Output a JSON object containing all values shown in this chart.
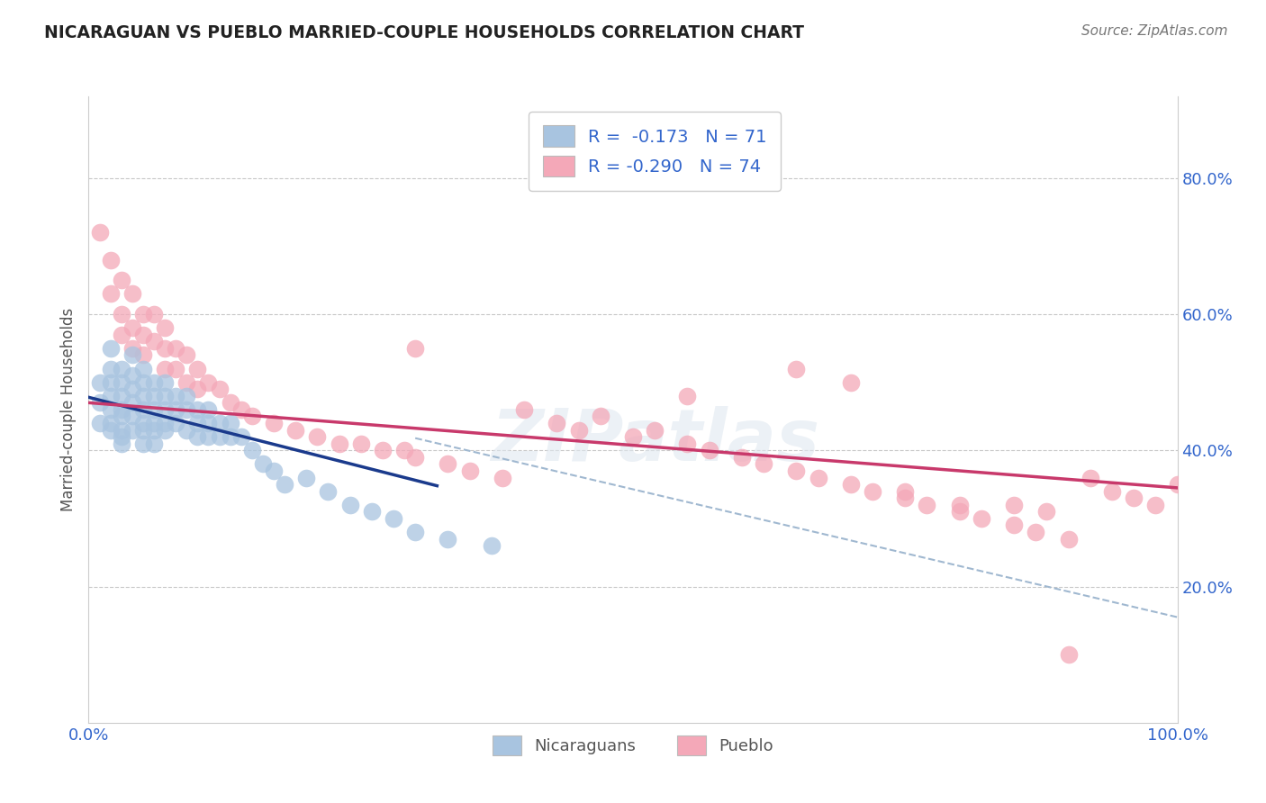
{
  "title": "NICARAGUAN VS PUEBLO MARRIED-COUPLE HOUSEHOLDS CORRELATION CHART",
  "source_text": "Source: ZipAtlas.com",
  "ylabel": "Married-couple Households",
  "xlim": [
    0.0,
    1.0
  ],
  "ylim": [
    0.0,
    0.92
  ],
  "ytick_labels": [
    "20.0%",
    "40.0%",
    "60.0%",
    "80.0%"
  ],
  "ytick_positions": [
    0.2,
    0.4,
    0.6,
    0.8
  ],
  "legend_r_blue": "-0.173",
  "legend_n_blue": "71",
  "legend_r_pink": "-0.290",
  "legend_n_pink": "74",
  "legend_label_blue": "Nicaraguans",
  "legend_label_pink": "Pueblo",
  "blue_color": "#a8c4e0",
  "pink_color": "#f4a8b8",
  "blue_line_color": "#1a3a8c",
  "pink_line_color": "#c8396b",
  "dashed_line_color": "#a0b8d0",
  "watermark": "ZIPatlas",
  "blue_scatter_x": [
    0.01,
    0.01,
    0.01,
    0.02,
    0.02,
    0.02,
    0.02,
    0.02,
    0.02,
    0.02,
    0.03,
    0.03,
    0.03,
    0.03,
    0.03,
    0.03,
    0.03,
    0.03,
    0.04,
    0.04,
    0.04,
    0.04,
    0.04,
    0.04,
    0.05,
    0.05,
    0.05,
    0.05,
    0.05,
    0.05,
    0.05,
    0.06,
    0.06,
    0.06,
    0.06,
    0.06,
    0.06,
    0.07,
    0.07,
    0.07,
    0.07,
    0.07,
    0.08,
    0.08,
    0.08,
    0.09,
    0.09,
    0.09,
    0.1,
    0.1,
    0.1,
    0.11,
    0.11,
    0.11,
    0.12,
    0.12,
    0.13,
    0.13,
    0.14,
    0.15,
    0.16,
    0.17,
    0.18,
    0.2,
    0.22,
    0.24,
    0.26,
    0.28,
    0.3,
    0.33,
    0.37
  ],
  "blue_scatter_y": [
    0.5,
    0.47,
    0.44,
    0.55,
    0.52,
    0.5,
    0.48,
    0.46,
    0.44,
    0.43,
    0.52,
    0.5,
    0.48,
    0.46,
    0.45,
    0.43,
    0.42,
    0.41,
    0.54,
    0.51,
    0.49,
    0.47,
    0.45,
    0.43,
    0.52,
    0.5,
    0.48,
    0.46,
    0.44,
    0.43,
    0.41,
    0.5,
    0.48,
    0.46,
    0.44,
    0.43,
    0.41,
    0.5,
    0.48,
    0.46,
    0.44,
    0.43,
    0.48,
    0.46,
    0.44,
    0.48,
    0.46,
    0.43,
    0.46,
    0.44,
    0.42,
    0.46,
    0.44,
    0.42,
    0.44,
    0.42,
    0.44,
    0.42,
    0.42,
    0.4,
    0.38,
    0.37,
    0.35,
    0.36,
    0.34,
    0.32,
    0.31,
    0.3,
    0.28,
    0.27,
    0.26
  ],
  "pink_scatter_x": [
    0.01,
    0.02,
    0.02,
    0.03,
    0.03,
    0.03,
    0.04,
    0.04,
    0.04,
    0.05,
    0.05,
    0.05,
    0.06,
    0.06,
    0.07,
    0.07,
    0.07,
    0.08,
    0.08,
    0.09,
    0.09,
    0.1,
    0.1,
    0.11,
    0.12,
    0.13,
    0.14,
    0.15,
    0.17,
    0.19,
    0.21,
    0.23,
    0.25,
    0.27,
    0.29,
    0.3,
    0.33,
    0.35,
    0.38,
    0.4,
    0.43,
    0.45,
    0.47,
    0.5,
    0.52,
    0.55,
    0.57,
    0.6,
    0.62,
    0.65,
    0.67,
    0.7,
    0.72,
    0.75,
    0.77,
    0.8,
    0.82,
    0.85,
    0.87,
    0.9,
    0.3,
    0.55,
    0.65,
    0.7,
    0.75,
    0.8,
    0.85,
    0.88,
    0.9,
    0.92,
    0.94,
    0.96,
    0.98,
    1.0
  ],
  "pink_scatter_y": [
    0.72,
    0.68,
    0.63,
    0.65,
    0.6,
    0.57,
    0.63,
    0.58,
    0.55,
    0.6,
    0.57,
    0.54,
    0.6,
    0.56,
    0.58,
    0.55,
    0.52,
    0.55,
    0.52,
    0.54,
    0.5,
    0.52,
    0.49,
    0.5,
    0.49,
    0.47,
    0.46,
    0.45,
    0.44,
    0.43,
    0.42,
    0.41,
    0.41,
    0.4,
    0.4,
    0.39,
    0.38,
    0.37,
    0.36,
    0.46,
    0.44,
    0.43,
    0.45,
    0.42,
    0.43,
    0.41,
    0.4,
    0.39,
    0.38,
    0.37,
    0.36,
    0.35,
    0.34,
    0.33,
    0.32,
    0.31,
    0.3,
    0.29,
    0.28,
    0.27,
    0.55,
    0.48,
    0.52,
    0.5,
    0.34,
    0.32,
    0.32,
    0.31,
    0.1,
    0.36,
    0.34,
    0.33,
    0.32,
    0.35
  ],
  "blue_line_x_start": 0.0,
  "blue_line_x_end": 0.32,
  "blue_line_y_start": 0.478,
  "blue_line_y_end": 0.348,
  "pink_line_x_start": 0.0,
  "pink_line_x_end": 1.0,
  "pink_line_y_start": 0.47,
  "pink_line_y_end": 0.345,
  "dashed_line_x_start": 0.3,
  "dashed_line_x_end": 1.0,
  "dashed_line_y_start": 0.418,
  "dashed_line_y_end": 0.155,
  "background_color": "#ffffff",
  "grid_color": "#c8c8c8",
  "axis_color": "#cccccc"
}
